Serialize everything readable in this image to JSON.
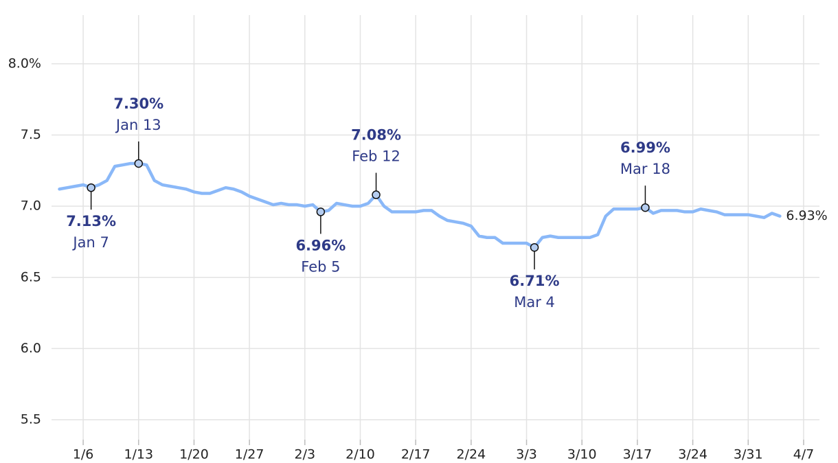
{
  "chart_data": {
    "type": "line",
    "x": [
      "1/3",
      "1/4",
      "1/5",
      "1/6",
      "1/7",
      "1/8",
      "1/9",
      "1/10",
      "1/11",
      "1/12",
      "1/13",
      "1/14",
      "1/15",
      "1/16",
      "1/17",
      "1/18",
      "1/19",
      "1/20",
      "1/21",
      "1/22",
      "1/23",
      "1/24",
      "1/25",
      "1/26",
      "1/27",
      "1/28",
      "1/29",
      "1/30",
      "1/31",
      "2/1",
      "2/2",
      "2/3",
      "2/4",
      "2/5",
      "2/6",
      "2/7",
      "2/8",
      "2/9",
      "2/10",
      "2/11",
      "2/12",
      "2/13",
      "2/14",
      "2/15",
      "2/16",
      "2/17",
      "2/18",
      "2/19",
      "2/20",
      "2/21",
      "2/22",
      "2/23",
      "2/24",
      "2/25",
      "2/26",
      "2/27",
      "2/28",
      "3/1",
      "3/2",
      "3/3",
      "3/4",
      "3/5",
      "3/6",
      "3/7",
      "3/8",
      "3/9",
      "3/10",
      "3/11",
      "3/12",
      "3/13",
      "3/14",
      "3/15",
      "3/16",
      "3/17",
      "3/18",
      "3/19",
      "3/20",
      "3/21",
      "3/22",
      "3/23",
      "3/24",
      "3/25",
      "3/26",
      "3/27",
      "3/28",
      "3/29",
      "3/30",
      "3/31",
      "4/1",
      "4/2",
      "4/3",
      "4/4"
    ],
    "series": [
      {
        "color": "#8ab8f8",
        "values": [
          7.12,
          7.13,
          7.14,
          7.15,
          7.13,
          7.15,
          7.18,
          7.28,
          7.29,
          7.3,
          7.3,
          7.29,
          7.18,
          7.15,
          7.14,
          7.13,
          7.12,
          7.1,
          7.09,
          7.09,
          7.11,
          7.13,
          7.12,
          7.1,
          7.07,
          7.05,
          7.03,
          7.01,
          7.02,
          7.01,
          7.01,
          7.0,
          7.01,
          6.96,
          6.97,
          7.02,
          7.01,
          7.0,
          7.0,
          7.02,
          7.08,
          7.0,
          6.96,
          6.96,
          6.96,
          6.96,
          6.97,
          6.97,
          6.93,
          6.9,
          6.89,
          6.88,
          6.86,
          6.79,
          6.78,
          6.78,
          6.74,
          6.74,
          6.74,
          6.74,
          6.71,
          6.78,
          6.79,
          6.78,
          6.78,
          6.78,
          6.78,
          6.78,
          6.8,
          6.93,
          6.98,
          6.98,
          6.98,
          6.98,
          6.99,
          6.95,
          6.97,
          6.97,
          6.97,
          6.96,
          6.96,
          6.98,
          6.97,
          6.96,
          6.94,
          6.94,
          6.94,
          6.94,
          6.93,
          6.92,
          6.95,
          6.93
        ]
      }
    ],
    "end_label": {
      "value": 6.93,
      "label": "6.93%"
    },
    "annotations": [
      {
        "x": "1/7",
        "value": 7.13,
        "label": "7.13%",
        "date": "Jan 7",
        "position": "below"
      },
      {
        "x": "1/13",
        "value": 7.3,
        "label": "7.30%",
        "date": "Jan 13",
        "position": "above"
      },
      {
        "x": "2/5",
        "value": 6.96,
        "label": "6.96%",
        "date": "Feb 5",
        "position": "below"
      },
      {
        "x": "2/12",
        "value": 7.08,
        "label": "7.08%",
        "date": "Feb 12",
        "position": "above"
      },
      {
        "x": "3/4",
        "value": 6.71,
        "label": "6.71%",
        "date": "Mar 4",
        "position": "below"
      },
      {
        "x": "3/18",
        "value": 6.99,
        "label": "6.99%",
        "date": "Mar 18",
        "position": "above"
      }
    ],
    "xlim": [
      "1/2",
      "4/9"
    ],
    "xticks": [
      "1/6",
      "1/13",
      "1/20",
      "1/27",
      "2/3",
      "2/10",
      "2/17",
      "2/24",
      "3/3",
      "3/10",
      "3/17",
      "3/24",
      "3/31",
      "4/7"
    ],
    "ylim": [
      5.36,
      8.4
    ],
    "yticks": [
      {
        "value": 5.5,
        "label": "5.5"
      },
      {
        "value": 6,
        "label": "6.0"
      },
      6.5,
      {
        "value": 7,
        "label": "7.0"
      },
      7.5,
      {
        "value": 8,
        "label": "8.0%"
      }
    ],
    "grid": true
  }
}
